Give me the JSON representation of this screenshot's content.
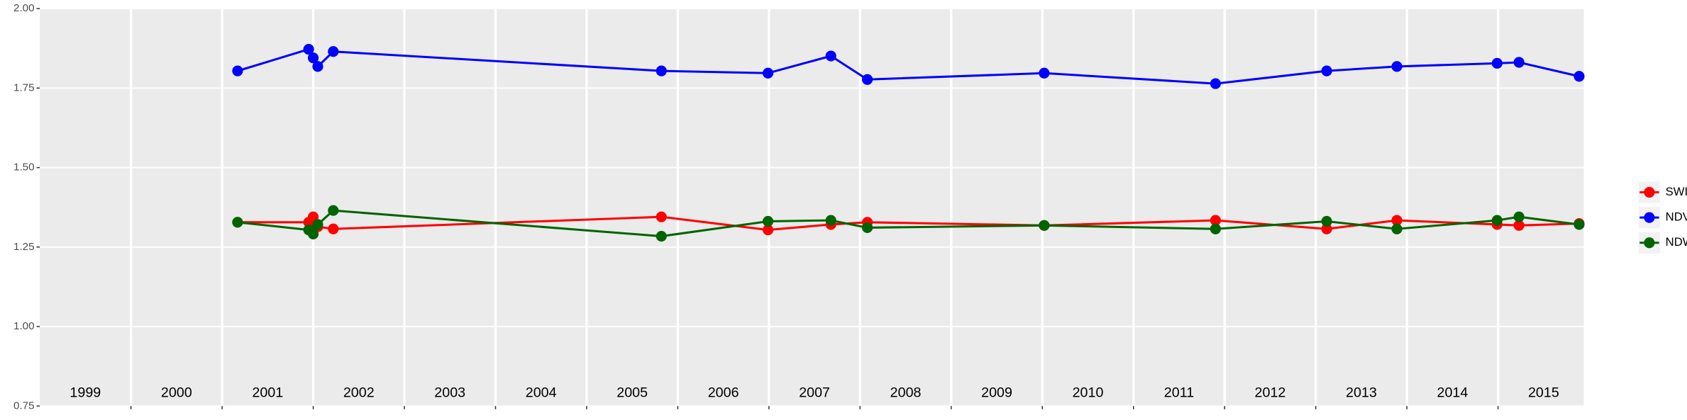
{
  "chart_data": {
    "type": "line",
    "x": [
      2001.17,
      2001.95,
      2002.0,
      2002.05,
      2002.22,
      2005.82,
      2006.99,
      2007.68,
      2008.08,
      2010.02,
      2011.9,
      2013.12,
      2013.89,
      2014.99,
      2015.23,
      2015.89
    ],
    "series": [
      {
        "name": "SWIR",
        "color": "#ff0000",
        "values": [
          1.328,
          1.328,
          1.345,
          1.314,
          1.307,
          1.345,
          1.304,
          1.321,
          1.328,
          1.318,
          1.334,
          1.307,
          1.334,
          1.321,
          1.318,
          1.324
        ]
      },
      {
        "name": "NDVI",
        "color": "#0000ff",
        "values": [
          1.804,
          1.872,
          1.845,
          1.818,
          1.865,
          1.804,
          1.797,
          1.851,
          1.777,
          1.797,
          1.764,
          1.804,
          1.818,
          1.828,
          1.831,
          1.787
        ]
      },
      {
        "name": "NDWI",
        "color": "#006400",
        "values": [
          1.328,
          1.304,
          1.291,
          1.321,
          1.365,
          1.284,
          1.331,
          1.334,
          1.311,
          1.318,
          1.307,
          1.331,
          1.307,
          1.334,
          1.345,
          1.321
        ]
      }
    ],
    "xlim": [
      1999,
      2015.94
    ],
    "xticks": [
      {
        "value": 1999.5,
        "label": "1999"
      },
      {
        "value": 2000.5,
        "label": "2000"
      },
      {
        "value": 2001.5,
        "label": "2001"
      },
      {
        "value": 2002.5,
        "label": "2002"
      },
      {
        "value": 2003.5,
        "label": "2003"
      },
      {
        "value": 2004.5,
        "label": "2004"
      },
      {
        "value": 2005.5,
        "label": "2005"
      },
      {
        "value": 2006.5,
        "label": "2006"
      },
      {
        "value": 2007.5,
        "label": "2007"
      },
      {
        "value": 2008.5,
        "label": "2008"
      },
      {
        "value": 2009.5,
        "label": "2009"
      },
      {
        "value": 2010.5,
        "label": "2010"
      },
      {
        "value": 2011.5,
        "label": "2011"
      },
      {
        "value": 2012.5,
        "label": "2012"
      },
      {
        "value": 2013.5,
        "label": "2013"
      },
      {
        "value": 2014.5,
        "label": "2014"
      },
      {
        "value": 2015.5,
        "label": "2015"
      }
    ],
    "x_gridlines": [
      2000,
      2001,
      2002,
      2003,
      2004,
      2005,
      2006,
      2007,
      2008,
      2009,
      2010,
      2011,
      2012,
      2013,
      2014,
      2015
    ],
    "ylim": [
      0.75,
      2.0
    ],
    "yticks": [
      0.75,
      {
        "value": 1,
        "label": "1.00"
      },
      1.25,
      {
        "value": 1.5,
        "label": "1.50"
      },
      1.75,
      {
        "value": 2,
        "label": "2.00"
      }
    ],
    "grid": true,
    "legend": "right"
  }
}
